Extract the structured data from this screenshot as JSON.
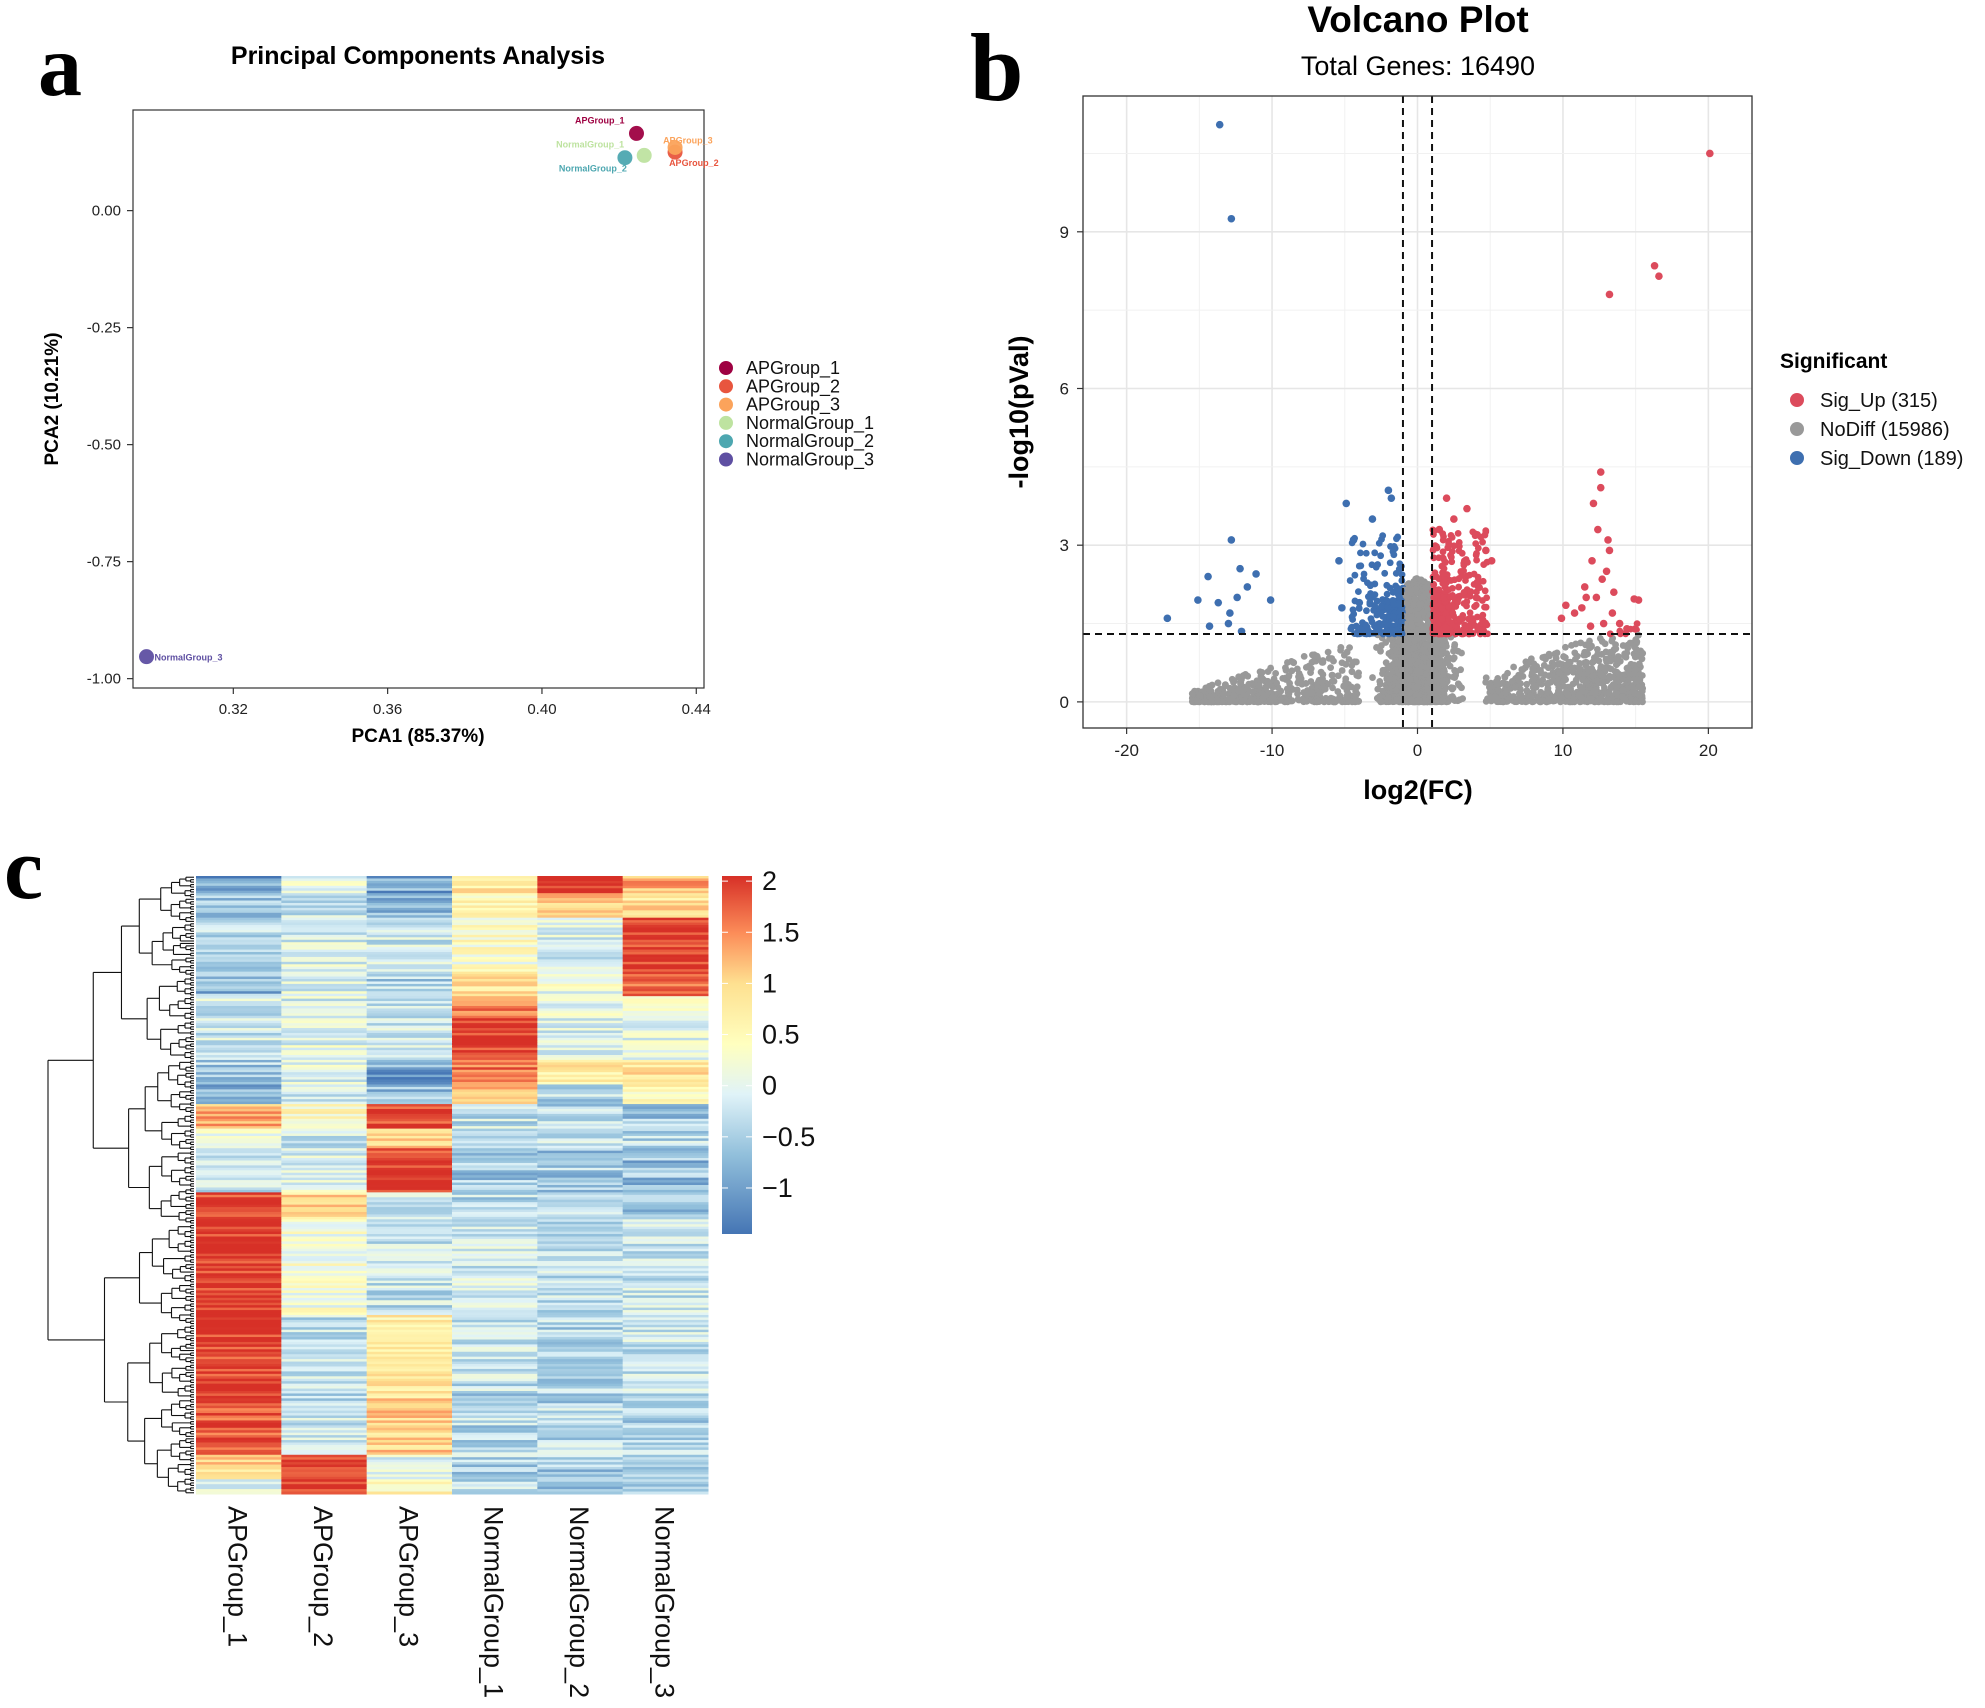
{
  "panels": {
    "a_letter": "a",
    "b_letter": "b",
    "c_letter": "c"
  },
  "chart_data": [
    {
      "type": "scatter",
      "title": "Principal Components Analysis",
      "xlabel": "PCA1 (85.37%)",
      "ylabel": "PCA2 (10.21%)",
      "xlim": [
        0.294,
        0.442
      ],
      "ylim": [
        -1.02,
        0.215
      ],
      "xticks": [
        0.32,
        0.36,
        0.4,
        0.44
      ],
      "xtick_labels": [
        "0.32",
        "0.36",
        "0.40",
        "0.44"
      ],
      "yticks": [
        0.0,
        -0.25,
        -0.5,
        -0.75,
        -1.0
      ],
      "ytick_labels": [
        "0.00",
        "-0.25",
        "-0.50",
        "-0.75",
        "-1.00"
      ],
      "grid": false,
      "legend_position": "right",
      "points": [
        {
          "name": "APGroup_1",
          "x": 0.4245,
          "y": 0.165,
          "color": "#9E0142"
        },
        {
          "name": "APGroup_2",
          "x": 0.4345,
          "y": 0.125,
          "color": "#E8553E"
        },
        {
          "name": "APGroup_3",
          "x": 0.4345,
          "y": 0.135,
          "color": "#FBA35B"
        },
        {
          "name": "NormalGroup_1",
          "x": 0.4265,
          "y": 0.118,
          "color": "#BEE3A0"
        },
        {
          "name": "NormalGroup_2",
          "x": 0.4215,
          "y": 0.113,
          "color": "#4DA7B0"
        },
        {
          "name": "NormalGroup_3",
          "x": 0.2975,
          "y": -0.953,
          "color": "#5E4FA2"
        }
      ],
      "legend": [
        "APGroup_1",
        "APGroup_2",
        "APGroup_3",
        "NormalGroup_1",
        "NormalGroup_2",
        "NormalGroup_3"
      ]
    },
    {
      "type": "scatter",
      "title": "Volcano Plot",
      "subtitle": "Total Genes: 16490",
      "xlabel": "log2(FC)",
      "ylabel": "-log10(pVal)",
      "xlim": [
        -23,
        23
      ],
      "ylim": [
        -0.5,
        11.6
      ],
      "xticks": [
        -20,
        -10,
        0,
        10,
        20
      ],
      "xtick_labels": [
        "-20",
        "-10",
        "0",
        "10",
        "20"
      ],
      "yticks": [
        0,
        3,
        6,
        9
      ],
      "ytick_labels": [
        "0",
        "3",
        "6",
        "9"
      ],
      "grid": true,
      "thresholds": {
        "vlines": [
          -1,
          1
        ],
        "hline": 1.3
      },
      "legend_title": "Significant",
      "legend_position": "right",
      "series": [
        {
          "name": "Sig_Up (315)",
          "color": "#DC4B5C"
        },
        {
          "name": "NoDiff (15986)",
          "color": "#999999"
        },
        {
          "name": "Sig_Down (189)",
          "color": "#3E6FB0"
        }
      ],
      "highlight_points": {
        "up": [
          [
            20.1,
            10.5
          ],
          [
            16.3,
            8.35
          ],
          [
            16.6,
            8.15
          ],
          [
            13.2,
            7.8
          ],
          [
            12.6,
            4.4
          ],
          [
            12.6,
            4.1
          ],
          [
            12.1,
            3.8
          ],
          [
            12.4,
            3.3
          ],
          [
            13.1,
            3.1
          ],
          [
            13.2,
            2.9
          ],
          [
            12.0,
            2.7
          ],
          [
            11.5,
            2.2
          ],
          [
            13.0,
            2.5
          ],
          [
            14.9,
            1.97
          ],
          [
            15.2,
            1.95
          ],
          [
            11.3,
            1.8
          ],
          [
            10.2,
            1.85
          ],
          [
            9.9,
            1.6
          ],
          [
            12.3,
            2.0
          ],
          [
            13.4,
            1.7
          ],
          [
            12.8,
            1.5
          ],
          [
            11.9,
            1.45
          ],
          [
            13.5,
            2.1
          ],
          [
            12.7,
            2.35
          ],
          [
            11.6,
            2.0
          ],
          [
            10.8,
            1.7
          ],
          [
            13.9,
            1.5
          ],
          [
            14.4,
            1.4
          ],
          [
            2.0,
            3.9
          ],
          [
            4.1,
            3.2
          ],
          [
            4.7,
            2.9
          ],
          [
            5.1,
            2.7
          ],
          [
            2.5,
            3.5
          ],
          [
            1.5,
            3.3
          ],
          [
            3.4,
            3.7
          ]
        ],
        "down": [
          [
            -13.6,
            11.05
          ],
          [
            -12.8,
            9.25
          ],
          [
            -12.8,
            3.1
          ],
          [
            -12.2,
            2.55
          ],
          [
            -14.4,
            2.4
          ],
          [
            -11.1,
            2.45
          ],
          [
            -11.7,
            2.2
          ],
          [
            -12.4,
            2.0
          ],
          [
            -10.1,
            1.95
          ],
          [
            -15.1,
            1.95
          ],
          [
            -13.7,
            1.9
          ],
          [
            -12.9,
            1.7
          ],
          [
            -17.2,
            1.6
          ],
          [
            -13.0,
            1.5
          ],
          [
            -14.3,
            1.45
          ],
          [
            -12.1,
            1.35
          ],
          [
            -4.9,
            3.8
          ],
          [
            -2.0,
            4.05
          ],
          [
            -1.8,
            3.9
          ],
          [
            -4.4,
            3.1
          ],
          [
            -5.4,
            2.7
          ],
          [
            -3.1,
            3.5
          ],
          [
            -4.0,
            1.9
          ],
          [
            -5.2,
            1.8
          ]
        ]
      }
    },
    {
      "type": "heatmap",
      "columns": [
        "APGroup_1",
        "APGroup_2",
        "APGroup_3",
        "NormalGroup_1",
        "NormalGroup_2",
        "NormalGroup_3"
      ],
      "colorbar_ticks": [
        2,
        1.5,
        1,
        0.5,
        0,
        -0.5,
        -1
      ],
      "colorbar_labels": [
        "2",
        "1.5",
        "1",
        "0.5",
        "0",
        "−0.5",
        "−1"
      ],
      "value_range": [
        -1.45,
        2.05
      ],
      "row_blocks": [
        {
          "rows": 7,
          "values": [
            -1.1,
            -0.2,
            -1.0,
            0.6,
            1.95,
            1.1
          ]
        },
        {
          "rows": 10,
          "values": [
            -0.8,
            -0.4,
            -0.8,
            0.3,
            1.0,
            0.7
          ]
        },
        {
          "rows": 22,
          "values": [
            -0.5,
            -0.3,
            -0.4,
            0.1,
            -0.3,
            1.95
          ]
        },
        {
          "rows": 10,
          "values": [
            -0.9,
            -0.3,
            -0.6,
            0.6,
            -0.1,
            1.6
          ]
        },
        {
          "rows": 8,
          "values": [
            -0.4,
            -0.3,
            -0.5,
            1.4,
            -0.2,
            0.0
          ]
        },
        {
          "rows": 18,
          "values": [
            -0.4,
            -0.2,
            -0.4,
            1.95,
            -0.4,
            -0.2
          ]
        },
        {
          "rows": 10,
          "values": [
            -0.7,
            -0.3,
            -1.0,
            1.5,
            0.6,
            0.7
          ]
        },
        {
          "rows": 8,
          "values": [
            -0.9,
            -0.4,
            -0.8,
            1.1,
            -0.6,
            0.3
          ]
        },
        {
          "rows": 10,
          "values": [
            1.1,
            0.2,
            1.8,
            -0.5,
            -0.6,
            -0.7
          ]
        },
        {
          "rows": 8,
          "values": [
            -0.2,
            -0.4,
            0.9,
            -0.6,
            -0.5,
            -0.6
          ]
        },
        {
          "rows": 18,
          "values": [
            -0.4,
            -0.3,
            1.95,
            -0.7,
            -0.7,
            -0.8
          ]
        },
        {
          "rows": 10,
          "values": [
            1.9,
            0.7,
            -0.4,
            -0.6,
            -0.6,
            -0.7
          ]
        },
        {
          "rows": 40,
          "values": [
            1.95,
            0.0,
            -0.5,
            -0.4,
            -0.5,
            -0.5
          ]
        },
        {
          "rows": 32,
          "values": [
            1.9,
            -0.5,
            0.5,
            -0.5,
            -0.6,
            -0.5
          ]
        },
        {
          "rows": 25,
          "values": [
            1.7,
            -0.5,
            0.8,
            -0.6,
            -0.6,
            -0.6
          ]
        },
        {
          "rows": 10,
          "values": [
            0.8,
            1.8,
            -0.2,
            -0.6,
            -0.7,
            -0.8
          ]
        },
        {
          "rows": 6,
          "values": [
            -0.4,
            1.9,
            0.3,
            -0.6,
            -0.7,
            -0.7
          ]
        }
      ]
    }
  ]
}
